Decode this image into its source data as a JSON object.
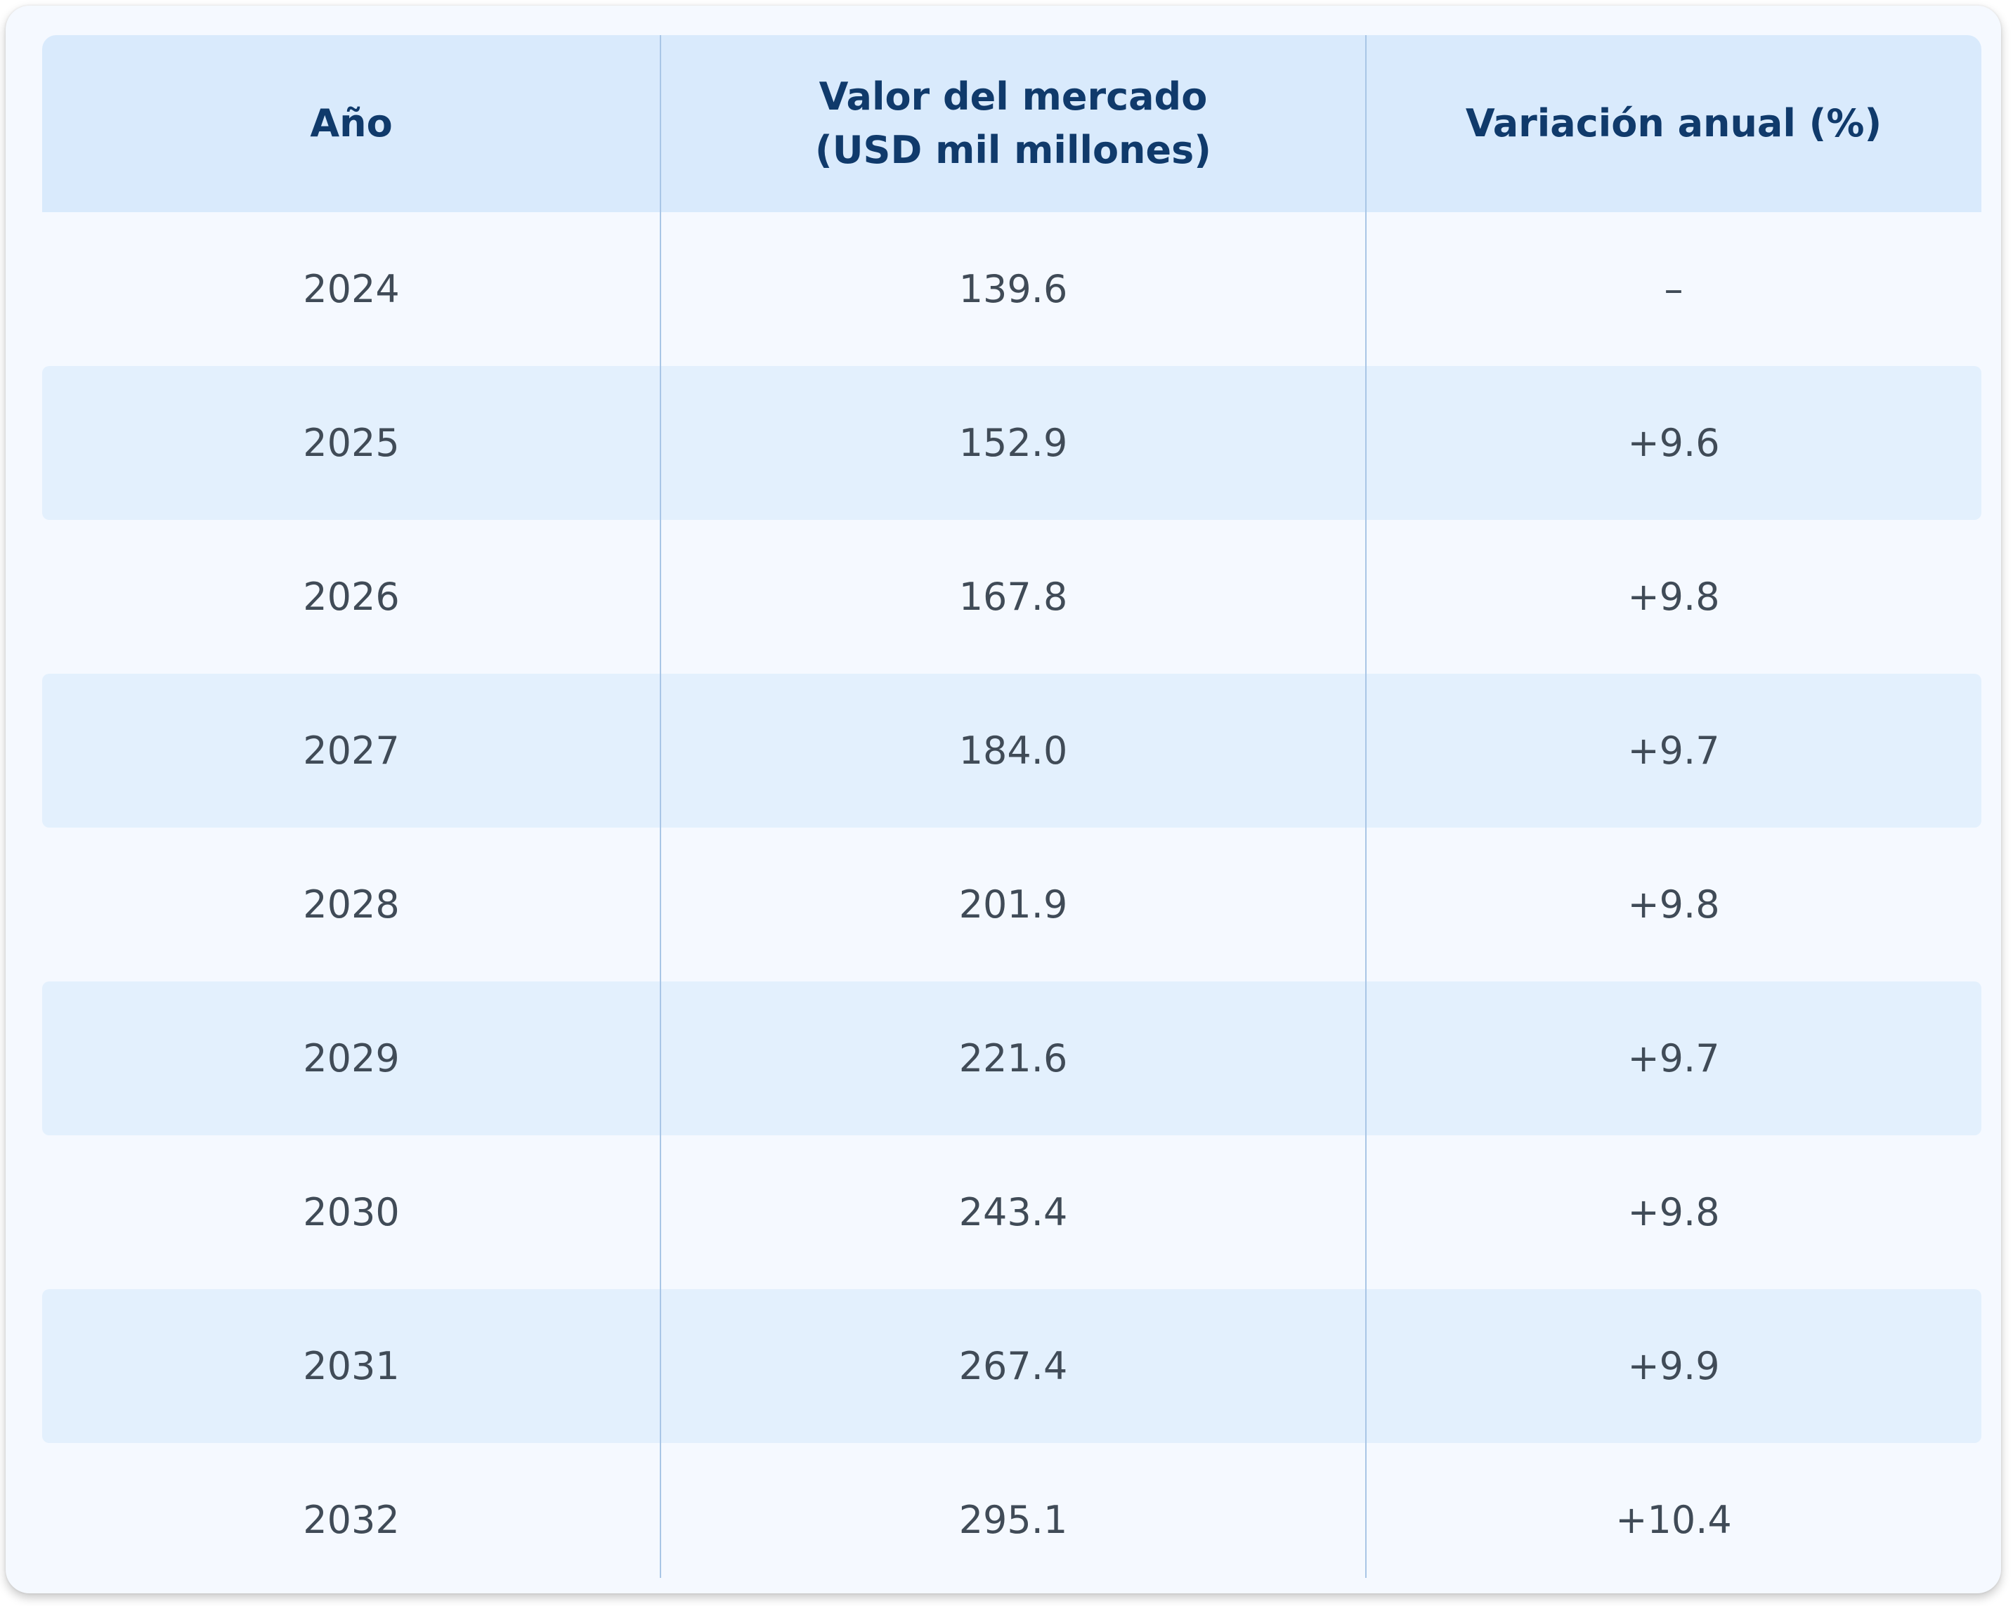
{
  "chart_data": {
    "type": "table",
    "columns": [
      "Año",
      "Valor del mercado\n(USD mil millones)",
      "Variación anual (%)"
    ],
    "rows": [
      [
        "2024",
        "139.6",
        "–"
      ],
      [
        "2025",
        "152.9",
        "+9.6"
      ],
      [
        "2026",
        "167.8",
        "+9.8"
      ],
      [
        "2027",
        "184.0",
        "+9.7"
      ],
      [
        "2028",
        "201.9",
        "+9.8"
      ],
      [
        "2029",
        "221.6",
        "+9.7"
      ],
      [
        "2030",
        "243.4",
        "+9.8"
      ],
      [
        "2031",
        "267.4",
        "+9.9"
      ],
      [
        "2032",
        "295.1",
        "+10.4"
      ]
    ]
  },
  "colors": {
    "header_background": "#d9eafc",
    "header_text": "#103a6b",
    "row_alt_background": "#e3f0fd",
    "row_background": "#f5f9ff",
    "body_text": "#404b57",
    "divider": "#a9c6e6"
  }
}
